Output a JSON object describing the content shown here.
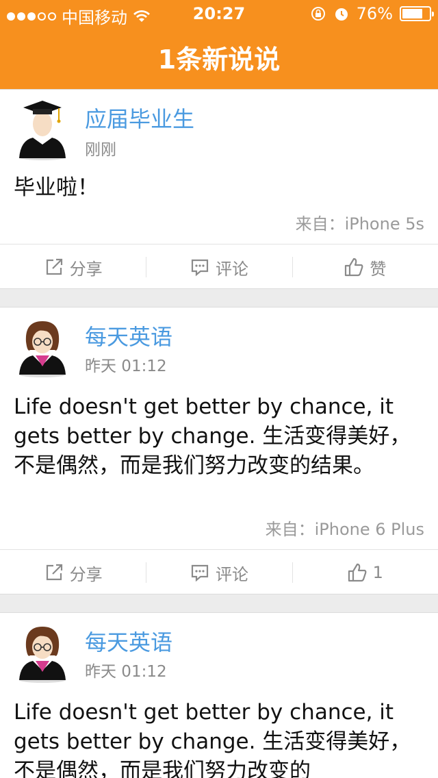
{
  "status_bar": {
    "carrier": "中国移动",
    "time": "20:27",
    "battery_text": "76%",
    "battery_level": 0.76,
    "signal_bars_filled": 3,
    "signal_bars_total": 5
  },
  "header": {
    "title": "1条新说说",
    "background_color": "#f7901e"
  },
  "posts": [
    {
      "username": "应届毕业生",
      "time": "刚刚",
      "avatar_icon": "graduate-avatar-icon",
      "content": "毕业啦！",
      "source": "来自：iPhone 5s",
      "actions": {
        "share": "分享",
        "comment": "评论",
        "like": "赞"
      }
    },
    {
      "username": "每天英语",
      "time": "昨天 01:12",
      "avatar_icon": "female-avatar-icon",
      "content": "Life doesn't get better by chance, it gets better by change. 生活变得美好，不是偶然，而是我们努力改变的结果。",
      "source": "来自：iPhone 6 Plus",
      "actions": {
        "share": "分享",
        "comment": "评论",
        "like": "1"
      }
    },
    {
      "username": "每天英语",
      "time": "昨天 01:12",
      "avatar_icon": "female-avatar-icon",
      "content": "Life doesn't get better by chance, it gets better by change. 生活变得美好，不是偶然，而是我们努力改变的"
    }
  ],
  "colors": {
    "accent": "#f7901e",
    "username": "#4a9ae0",
    "muted": "#8a8a8a"
  }
}
